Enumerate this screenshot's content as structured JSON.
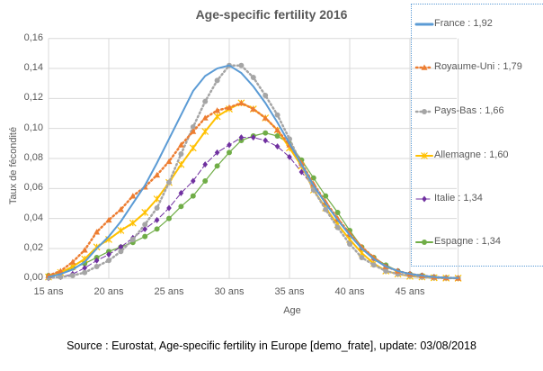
{
  "chart_data": {
    "type": "line",
    "title": "Age-specific fertility 2016",
    "xlabel": "Age",
    "ylabel": "Taux de fécondité",
    "source": "Source : Eurostat, Age-specific fertility in Europe [demo_frate], update: 03/08/2018",
    "xlim": [
      15,
      49
    ],
    "ylim": [
      0,
      0.16
    ],
    "grid": true,
    "legend_position": "right",
    "x_ticks": [
      "15 ans",
      "20 ans",
      "25 ans",
      "30 ans",
      "35 ans",
      "40 ans",
      "45 ans"
    ],
    "x_tick_values": [
      15,
      20,
      25,
      30,
      35,
      40,
      45
    ],
    "y_ticks": [
      "0,00",
      "0,02",
      "0,04",
      "0,06",
      "0,08",
      "0,10",
      "0,12",
      "0,14",
      "0,16"
    ],
    "y_tick_values": [
      0,
      0.02,
      0.04,
      0.06,
      0.08,
      0.1,
      0.12,
      0.14,
      0.16
    ],
    "x": [
      15,
      16,
      17,
      18,
      19,
      20,
      21,
      22,
      23,
      24,
      25,
      26,
      27,
      28,
      29,
      30,
      31,
      32,
      33,
      34,
      35,
      36,
      37,
      38,
      39,
      40,
      41,
      42,
      43,
      44,
      45,
      46,
      47,
      48,
      49
    ],
    "series": [
      {
        "name": "France : 1,92",
        "color": "#5b9bd5",
        "style": "solid",
        "marker": "none",
        "values": [
          0.001,
          0.003,
          0.006,
          0.011,
          0.02,
          0.028,
          0.038,
          0.05,
          0.062,
          0.077,
          0.093,
          0.109,
          0.125,
          0.135,
          0.14,
          0.142,
          0.137,
          0.128,
          0.117,
          0.104,
          0.09,
          0.076,
          0.062,
          0.05,
          0.039,
          0.029,
          0.02,
          0.013,
          0.008,
          0.005,
          0.003,
          0.002,
          0.001,
          0.0005,
          0.0003
        ]
      },
      {
        "name": "Royaume-Uni : 1,79",
        "color": "#ed7d31",
        "style": "dotted",
        "marker": "triangle",
        "values": [
          0.002,
          0.005,
          0.011,
          0.019,
          0.031,
          0.039,
          0.046,
          0.055,
          0.061,
          0.069,
          0.078,
          0.089,
          0.098,
          0.107,
          0.112,
          0.114,
          0.117,
          0.113,
          0.107,
          0.099,
          0.089,
          0.077,
          0.063,
          0.051,
          0.04,
          0.03,
          0.021,
          0.014,
          0.008,
          0.005,
          0.003,
          0.002,
          0.001,
          0.0005,
          0.0003
        ]
      },
      {
        "name": "Pays-Bas : 1,66",
        "color": "#a5a5a5",
        "style": "dotted",
        "marker": "circle",
        "values": [
          0.0005,
          0.001,
          0.002,
          0.004,
          0.008,
          0.012,
          0.018,
          0.026,
          0.036,
          0.047,
          0.064,
          0.083,
          0.101,
          0.118,
          0.132,
          0.142,
          0.142,
          0.134,
          0.122,
          0.109,
          0.093,
          0.076,
          0.059,
          0.046,
          0.034,
          0.023,
          0.014,
          0.009,
          0.005,
          0.003,
          0.002,
          0.001,
          0.0005,
          0.0003,
          0.0002
        ]
      },
      {
        "name": "Allemagne : 1,60",
        "color": "#ffc000",
        "style": "solid",
        "marker": "star",
        "values": [
          0.001,
          0.004,
          0.008,
          0.013,
          0.021,
          0.026,
          0.032,
          0.037,
          0.044,
          0.053,
          0.064,
          0.076,
          0.087,
          0.098,
          0.108,
          0.113,
          0.117,
          0.113,
          0.107,
          0.099,
          0.087,
          0.075,
          0.059,
          0.047,
          0.036,
          0.026,
          0.017,
          0.01,
          0.005,
          0.003,
          0.0015,
          0.001,
          0.0005,
          0.0003,
          0.0002
        ]
      },
      {
        "name": "Italie : 1,34",
        "color": "#7030a0",
        "style": "dashed",
        "marker": "diamond",
        "values": [
          0.0003,
          0.001,
          0.003,
          0.007,
          0.012,
          0.016,
          0.021,
          0.027,
          0.033,
          0.039,
          0.047,
          0.057,
          0.065,
          0.076,
          0.084,
          0.089,
          0.094,
          0.094,
          0.092,
          0.088,
          0.081,
          0.071,
          0.061,
          0.05,
          0.039,
          0.029,
          0.02,
          0.013,
          0.008,
          0.005,
          0.003,
          0.002,
          0.001,
          0.0005,
          0.0003
        ]
      },
      {
        "name": "Espagne : 1,34",
        "color": "#70ad47",
        "style": "solid",
        "marker": "circle",
        "values": [
          0.002,
          0.004,
          0.007,
          0.01,
          0.014,
          0.018,
          0.021,
          0.024,
          0.028,
          0.033,
          0.04,
          0.048,
          0.055,
          0.065,
          0.075,
          0.084,
          0.092,
          0.095,
          0.097,
          0.095,
          0.09,
          0.079,
          0.067,
          0.055,
          0.044,
          0.032,
          0.021,
          0.014,
          0.009,
          0.005,
          0.003,
          0.002,
          0.001,
          0.0005,
          0.0003
        ]
      }
    ]
  }
}
